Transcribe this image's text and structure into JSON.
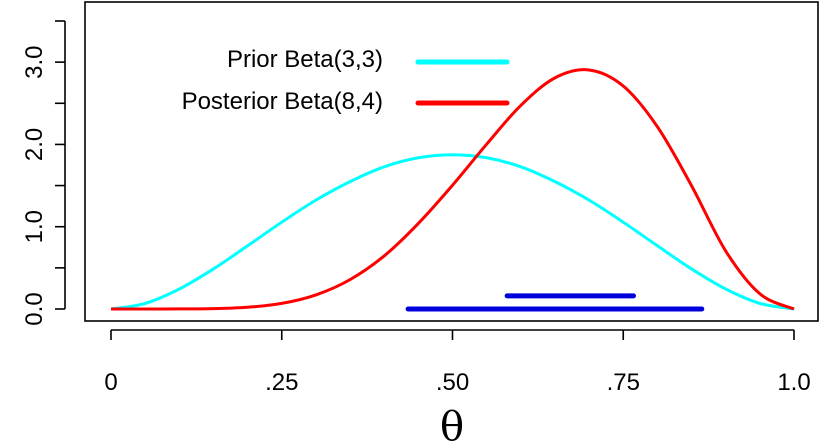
{
  "chart_data": {
    "type": "line",
    "xlabel": "θ",
    "ylabel": "",
    "xlim": [
      0,
      1
    ],
    "ylim": [
      0,
      3.5
    ],
    "x_ticks": [
      {
        "value": 0,
        "label": "0"
      },
      {
        "value": 0.25,
        "label": ".25"
      },
      {
        "value": 0.5,
        "label": ".50"
      },
      {
        "value": 0.75,
        "label": ".75"
      },
      {
        "value": 1.0,
        "label": "1.0"
      }
    ],
    "y_ticks": [
      {
        "value": 0.0,
        "label": "0.0"
      },
      {
        "value": 0.5,
        "label": ""
      },
      {
        "value": 1.0,
        "label": "1.0"
      },
      {
        "value": 1.5,
        "label": ""
      },
      {
        "value": 2.0,
        "label": "2.0"
      },
      {
        "value": 2.5,
        "label": ""
      },
      {
        "value": 3.0,
        "label": "3.0"
      },
      {
        "value": 3.5,
        "label": ""
      }
    ],
    "series": [
      {
        "name": "Prior Beta(3,3)",
        "color": "#00ffff",
        "x": [
          0.0,
          0.05,
          0.1,
          0.15,
          0.2,
          0.25,
          0.3,
          0.35,
          0.4,
          0.45,
          0.5,
          0.55,
          0.6,
          0.65,
          0.7,
          0.75,
          0.8,
          0.85,
          0.9,
          0.95,
          1.0
        ],
        "y": [
          0.0,
          0.068,
          0.243,
          0.487,
          0.768,
          1.055,
          1.323,
          1.548,
          1.728,
          1.838,
          1.875,
          1.838,
          1.728,
          1.548,
          1.323,
          1.055,
          0.768,
          0.487,
          0.243,
          0.068,
          0.0
        ]
      },
      {
        "name": "Posterior Beta(8,4)",
        "color": "#ff0000",
        "x": [
          0.0,
          0.05,
          0.1,
          0.15,
          0.2,
          0.25,
          0.3,
          0.35,
          0.4,
          0.45,
          0.5,
          0.55,
          0.6,
          0.65,
          0.7,
          0.75,
          0.8,
          0.85,
          0.9,
          0.95,
          1.0
        ],
        "y": [
          0.0,
          0.0,
          0.001,
          0.005,
          0.021,
          0.068,
          0.171,
          0.357,
          0.645,
          1.04,
          1.504,
          2.003,
          2.474,
          2.809,
          2.905,
          2.71,
          2.215,
          1.498,
          0.705,
          0.185,
          0.0
        ]
      }
    ],
    "intervals": [
      {
        "name": "Posterior interval",
        "color": "#0000dd",
        "x_start": 0.58,
        "x_end": 0.765,
        "y": 0.16
      },
      {
        "name": "Prior interval",
        "color": "#0000dd",
        "x_start": 0.435,
        "x_end": 0.865,
        "y": 0.0
      }
    ],
    "legend": {
      "placement": "top-left",
      "entries": [
        {
          "label": "Prior Beta(3,3)",
          "color": "#00ffff"
        },
        {
          "label": "Posterior Beta(8,4)",
          "color": "#ff0000"
        }
      ]
    },
    "grid": false
  }
}
